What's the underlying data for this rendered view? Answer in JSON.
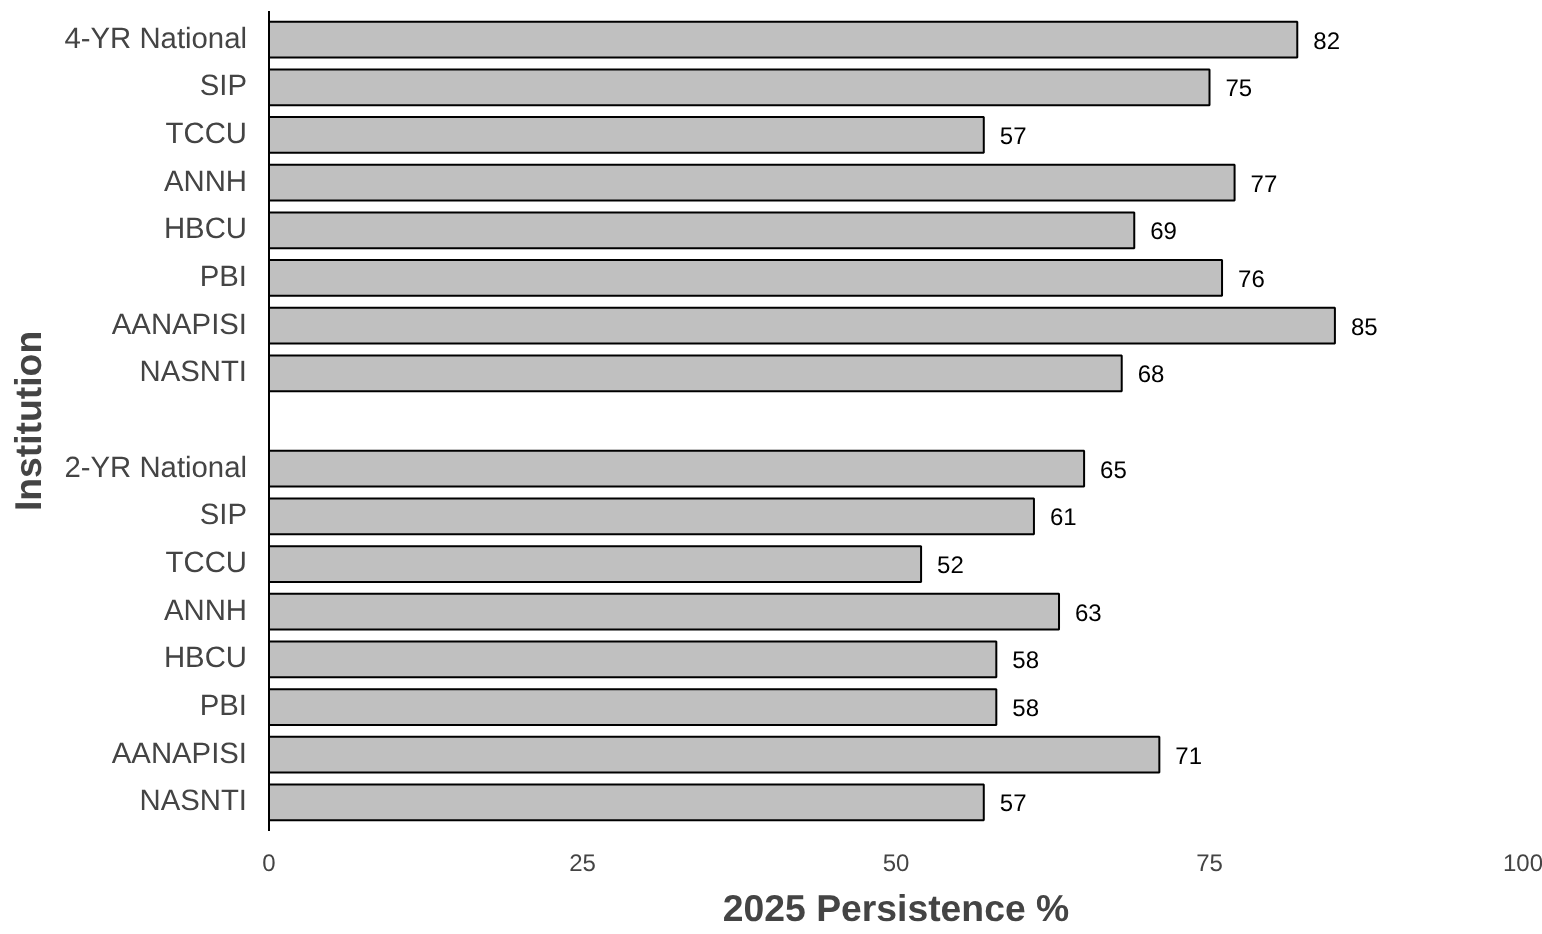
{
  "chart_data": {
    "type": "bar",
    "orientation": "horizontal",
    "xlabel": "2025 Persistence %",
    "ylabel": "Institution",
    "categories": [
      "4-YR National",
      "SIP",
      "TCCU",
      "ANNH",
      "HBCU",
      "PBI",
      "AANAPISI",
      "NASNTI",
      null,
      "2-YR National",
      "SIP",
      "TCCU",
      "ANNH",
      "HBCU",
      "PBI",
      "AANAPISI",
      "NASNTI"
    ],
    "values": [
      82,
      75,
      57,
      77,
      69,
      76,
      85,
      68,
      null,
      65,
      61,
      52,
      63,
      58,
      58,
      71,
      57
    ],
    "color": "#c0c0c0",
    "xlim": [
      0,
      100
    ],
    "xticks": [
      0,
      25,
      50,
      75,
      100
    ],
    "grid": false,
    "data_labels": true
  }
}
